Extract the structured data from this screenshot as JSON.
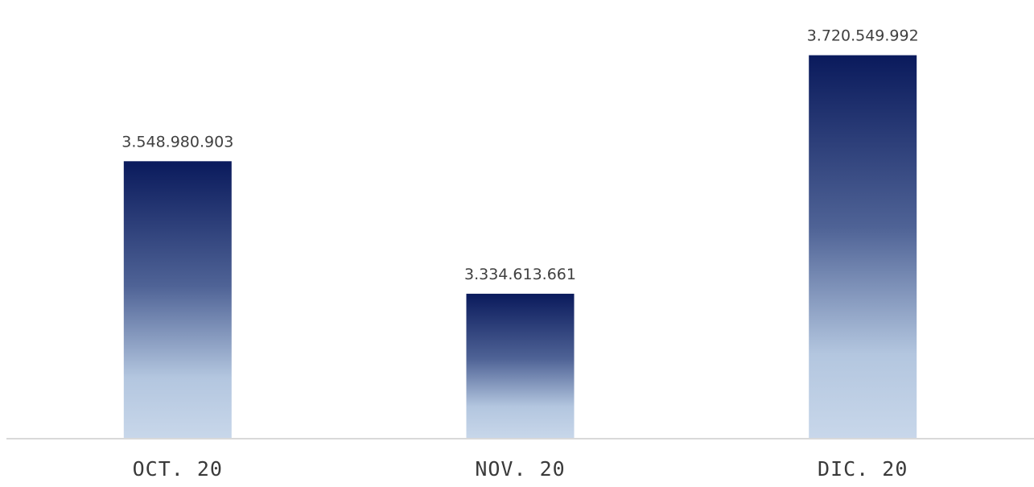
{
  "chart_data": {
    "type": "bar",
    "categories": [
      "OCT. 20",
      "NOV. 20",
      "DIC. 20"
    ],
    "values": [
      3548980903,
      3334613661,
      3720549992
    ],
    "data_labels": [
      "3.548.980.903",
      "3.334.613.661",
      "3.720.549.992"
    ],
    "title": "",
    "xlabel": "",
    "ylabel": "",
    "ylim": [
      3100000000,
      3750000000
    ],
    "grid": false,
    "legend": "none",
    "colors": {
      "bar_top": "#0a1a5c",
      "bar_mid": "#6f86b3",
      "bar_low": "#b3c6df",
      "bar_bottom": "#c8d7ea",
      "axis": "#d9d9d9",
      "label_text": "#404040"
    }
  }
}
